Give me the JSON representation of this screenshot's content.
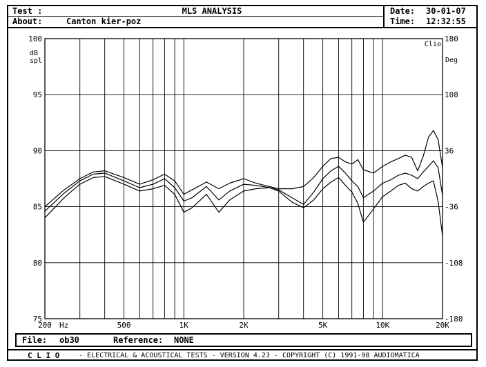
{
  "header": {
    "test_label": "Test :",
    "title": "MLS ANALYSIS",
    "about_label": "About:",
    "about_value": "Canton kier-poz",
    "date_label": "Date:",
    "date_value": "30-01-07",
    "time_label": "Time:",
    "time_value": "12:32:55"
  },
  "footer": {
    "file_label": "File:",
    "file_value": "ob30",
    "reference_label": "Reference:",
    "reference_value": "NONE",
    "credit_brand": "C L I O",
    "credit_text": "- ELECTRICAL & ACOUSTICAL TESTS - VERSION 4.23 - COPYRIGHT (C) 1991-98 AUDIOMATICA"
  },
  "chart_data": {
    "type": "line",
    "x_scale": "log",
    "xlim": [
      200,
      20000
    ],
    "ylim": [
      75,
      100
    ],
    "y2lim": [
      -180,
      180
    ],
    "ylabel": "dB spl",
    "y2label": "Deg",
    "brand_label": "Clio",
    "x_unit_label": "Hz",
    "x_ticks": [
      {
        "value": 200,
        "label": "200"
      },
      {
        "value": 500,
        "label": "500"
      },
      {
        "value": 1000,
        "label": "1K"
      },
      {
        "value": 2000,
        "label": "2K"
      },
      {
        "value": 5000,
        "label": "5K"
      },
      {
        "value": 10000,
        "label": "10K"
      },
      {
        "value": 20000,
        "label": "20K"
      }
    ],
    "y_ticks": [
      75,
      80,
      85,
      90,
      95,
      100
    ],
    "y2_ticks": [
      -180,
      -108,
      -36,
      36,
      108,
      180
    ],
    "grid": true,
    "series": [
      {
        "x": [
          200,
          250,
          300,
          350,
          400,
          500,
          600,
          700,
          800,
          900,
          1000,
          1100,
          1300,
          1500,
          1700,
          2000,
          2300,
          2700,
          3000,
          3500,
          4000,
          4500,
          5000,
          5500,
          6000,
          6500,
          7000,
          7500,
          8000,
          9000,
          10000,
          11000,
          12000,
          13000,
          14000,
          15000,
          16000,
          17000,
          18000,
          19000,
          20000
        ],
        "y": [
          85.0,
          86.5,
          87.5,
          88.1,
          88.2,
          87.6,
          87.0,
          87.4,
          87.9,
          87.3,
          86.1,
          86.5,
          87.2,
          86.6,
          87.1,
          87.5,
          87.1,
          86.8,
          86.6,
          86.6,
          86.8,
          87.6,
          88.6,
          89.3,
          89.4,
          89.0,
          88.8,
          89.2,
          88.3,
          88.0,
          88.6,
          89.0,
          89.3,
          89.6,
          89.4,
          88.2,
          89.5,
          91.2,
          91.8,
          91.0,
          88.5
        ]
      },
      {
        "x": [
          200,
          250,
          300,
          350,
          400,
          500,
          600,
          700,
          800,
          900,
          1000,
          1100,
          1300,
          1500,
          1700,
          2000,
          2300,
          2700,
          3000,
          3500,
          4000,
          4500,
          5000,
          5500,
          6000,
          6500,
          7000,
          7500,
          8000,
          9000,
          10000,
          11000,
          12000,
          13000,
          14000,
          15000,
          16000,
          17000,
          18000,
          19000,
          20000
        ],
        "y": [
          84.6,
          86.2,
          87.3,
          87.9,
          88.0,
          87.3,
          86.7,
          87.0,
          87.5,
          86.7,
          85.5,
          85.8,
          86.8,
          85.6,
          86.4,
          87.0,
          86.9,
          86.7,
          86.5,
          85.8,
          85.2,
          86.3,
          87.5,
          88.2,
          88.6,
          88.0,
          87.3,
          86.8,
          85.8,
          86.4,
          87.1,
          87.4,
          87.8,
          88.0,
          87.8,
          87.5,
          88.1,
          88.6,
          89.1,
          88.5,
          86.0
        ]
      },
      {
        "x": [
          200,
          250,
          300,
          350,
          400,
          500,
          600,
          700,
          800,
          900,
          1000,
          1100,
          1300,
          1500,
          1700,
          2000,
          2300,
          2700,
          3000,
          3500,
          4000,
          4500,
          5000,
          5500,
          6000,
          6500,
          7000,
          7500,
          8000,
          9000,
          10000,
          11000,
          12000,
          13000,
          14000,
          15000,
          16000,
          17000,
          18000,
          19000,
          20000
        ],
        "y": [
          84.0,
          85.8,
          87.0,
          87.6,
          87.7,
          87.0,
          86.4,
          86.6,
          86.9,
          86.1,
          84.5,
          84.9,
          86.1,
          84.5,
          85.6,
          86.4,
          86.6,
          86.7,
          86.4,
          85.4,
          84.9,
          85.6,
          86.6,
          87.2,
          87.6,
          86.9,
          86.3,
          85.3,
          83.6,
          84.8,
          85.9,
          86.4,
          86.9,
          87.1,
          86.6,
          86.4,
          86.8,
          87.1,
          87.3,
          85.5,
          82.4
        ]
      }
    ]
  }
}
